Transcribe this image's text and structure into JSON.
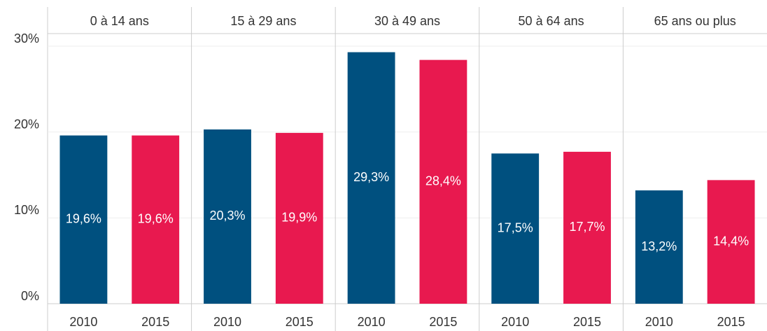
{
  "chart_data": {
    "type": "bar",
    "categories": [
      "0 à 14 ans",
      "15 à 29 ans",
      "30 à 49 ans",
      "50 à 64 ans",
      "65 ans ou plus"
    ],
    "series": [
      {
        "name": "2010",
        "color": "#00507f",
        "values": [
          19.6,
          20.3,
          29.3,
          17.5,
          13.2
        ],
        "value_labels": [
          "19,6%",
          "20,3%",
          "29,3%",
          "17,5%",
          "13,2%"
        ]
      },
      {
        "name": "2015",
        "color": "#e8194f",
        "values": [
          19.6,
          19.9,
          28.4,
          17.7,
          14.4
        ],
        "value_labels": [
          "19,6%",
          "19,9%",
          "28,4%",
          "17,7%",
          "14,4%"
        ]
      }
    ],
    "ylim": [
      0,
      30
    ],
    "yticks": [
      {
        "value": 0,
        "label": "0%"
      },
      {
        "value": 10,
        "label": "10%"
      },
      {
        "value": 20,
        "label": "20%"
      },
      {
        "value": 30,
        "label": "30%"
      }
    ],
    "grid": true
  }
}
